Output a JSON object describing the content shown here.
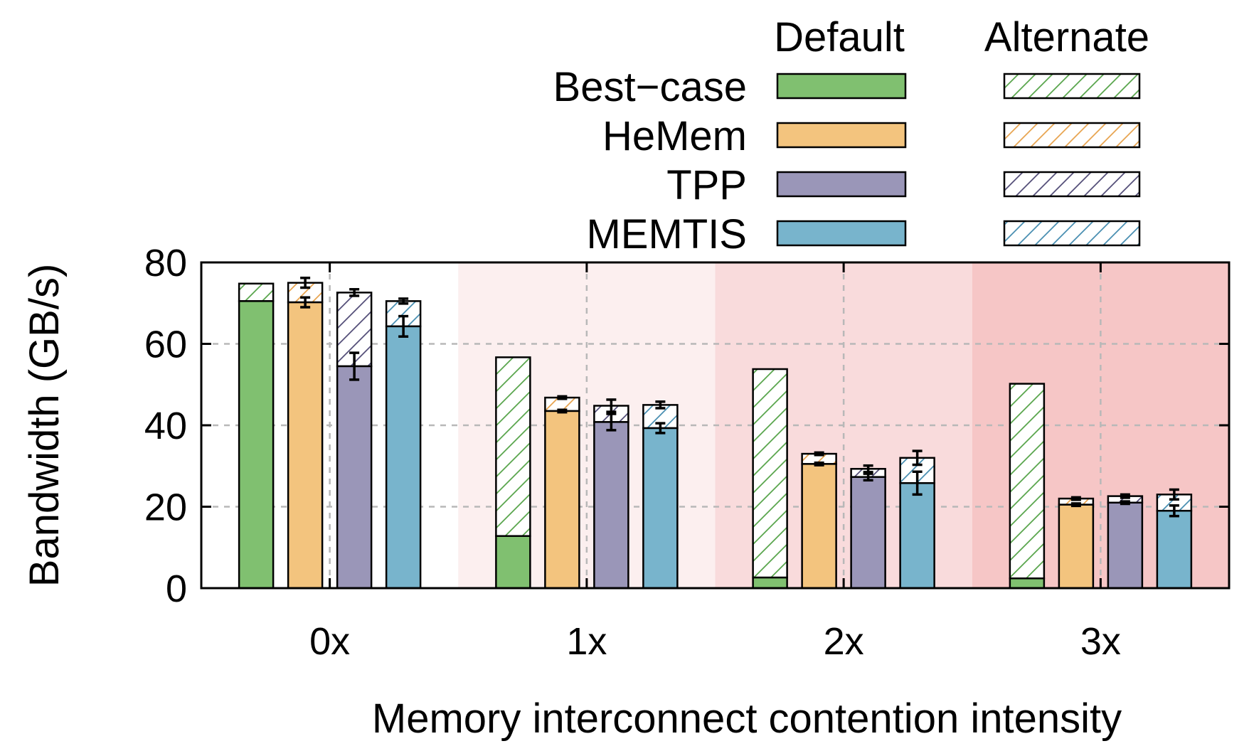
{
  "chart_data": {
    "type": "bar",
    "stacked": true,
    "xlabel": "Memory interconnect contention intensity",
    "ylabel": "Bandwidth (GB/s)",
    "ylim": [
      0,
      80
    ],
    "yticks": [
      0,
      20,
      40,
      60,
      80
    ],
    "grid": true,
    "legend": {
      "placement": "top",
      "column_headers": [
        "Default",
        "Alternate"
      ]
    },
    "categories": [
      "0x",
      "1x",
      "2x",
      "3x"
    ],
    "region_colors": [
      "#ffffff",
      "#fcefef",
      "#f9dbdc",
      "#f6c6c6"
    ],
    "series": [
      {
        "name": "Best−case",
        "color": "#80c070",
        "hatch": "#5aa64e",
        "default": [
          70.5,
          12.8,
          2.6,
          2.4
        ],
        "total": [
          74.8,
          56.7,
          53.8,
          50.2
        ],
        "err_default": [
          null,
          null,
          null,
          null
        ],
        "err_total": [
          null,
          null,
          null,
          null
        ]
      },
      {
        "name": "HeMem",
        "color": "#f3c47e",
        "hatch": "#e8a552",
        "default": [
          70.2,
          43.5,
          30.5,
          20.5
        ],
        "total": [
          75.0,
          46.8,
          33.0,
          22.0
        ],
        "err_default": [
          1.2,
          0.3,
          0.3,
          0.3
        ],
        "err_total": [
          1.2,
          0.3,
          0.3,
          0.3
        ]
      },
      {
        "name": "TPP",
        "color": "#9a96b8",
        "hatch": "#55507a",
        "default": [
          54.5,
          40.8,
          27.3,
          21.0
        ],
        "total": [
          72.6,
          44.8,
          29.3,
          22.6
        ],
        "err_default": [
          3.3,
          2.0,
          0.8,
          0.3
        ],
        "err_total": [
          0.8,
          1.5,
          0.8,
          0.4
        ]
      },
      {
        "name": "MEMTIS",
        "color": "#78b4cc",
        "hatch": "#4a8fb2",
        "default": [
          64.3,
          39.3,
          25.8,
          19.0
        ],
        "total": [
          70.5,
          45.0,
          32.0,
          23.0
        ],
        "err_default": [
          2.5,
          1.2,
          2.8,
          1.3
        ],
        "err_total": [
          0.6,
          0.8,
          1.7,
          1.2
        ]
      }
    ]
  }
}
